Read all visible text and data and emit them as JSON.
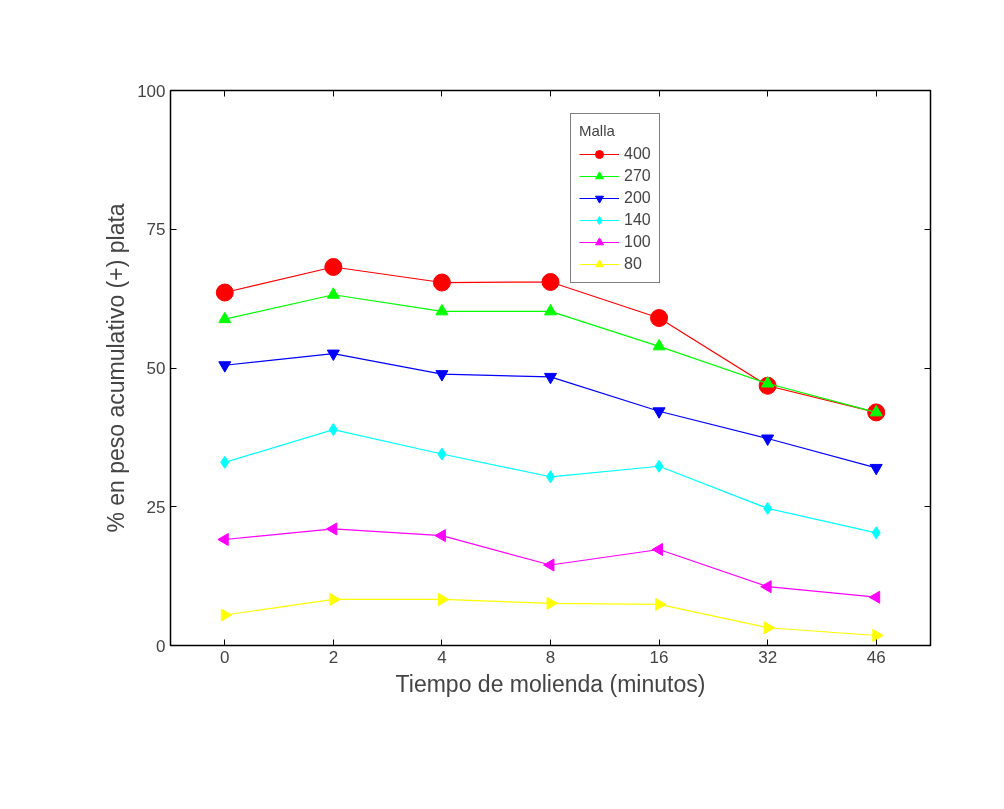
{
  "chart_data": {
    "type": "line",
    "xlabel": "Tiempo de molienda (minutos)",
    "ylabel": "% en peso acumulativo (+) plata",
    "legend_title": "Malla",
    "legend": "top right",
    "grid": false,
    "categories": [
      "0",
      "2",
      "4",
      "8",
      "16",
      "32",
      "46"
    ],
    "ylim": [
      0,
      100
    ],
    "yticks": [
      0,
      25,
      50,
      75,
      100
    ],
    "series": [
      {
        "name": "400",
        "color": "#ff0000",
        "marker": "circle",
        "values": [
          63.6,
          68.2,
          65.4,
          65.5,
          59.0,
          46.8,
          42.0
        ]
      },
      {
        "name": "270",
        "color": "#00ff00",
        "marker": "triangle",
        "values": [
          58.8,
          63.2,
          60.2,
          60.2,
          53.9,
          47.2,
          42.0
        ]
      },
      {
        "name": "200",
        "color": "#0000ff",
        "marker": "triangle-down",
        "values": [
          50.5,
          52.6,
          48.9,
          48.4,
          42.2,
          37.3,
          32.0
        ]
      },
      {
        "name": "140",
        "color": "#00ffff",
        "marker": "diamond",
        "values": [
          33.0,
          38.9,
          34.5,
          30.4,
          32.3,
          24.7,
          20.3
        ]
      },
      {
        "name": "100",
        "color": "#ff00ff",
        "marker": "triangle-left",
        "values": [
          19.1,
          21.0,
          19.8,
          14.5,
          17.3,
          10.6,
          8.7
        ]
      },
      {
        "name": "80",
        "color": "#ffff00",
        "marker": "triangle-right",
        "values": [
          5.5,
          8.3,
          8.3,
          7.6,
          7.4,
          3.2,
          1.8
        ]
      }
    ]
  }
}
